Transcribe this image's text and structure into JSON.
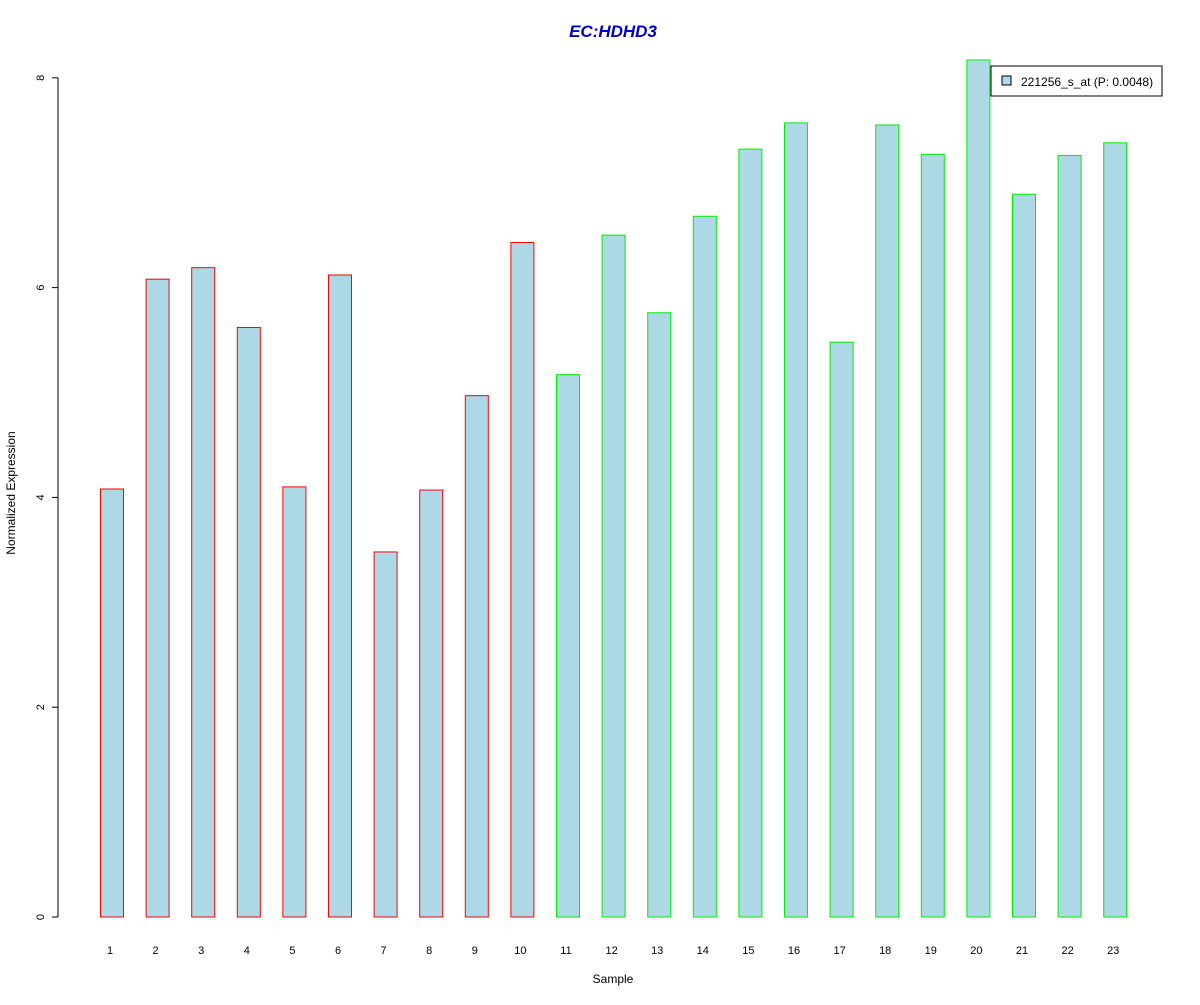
{
  "chart_data": {
    "type": "bar",
    "title": "EC:HDHD3",
    "xlabel": "Sample",
    "ylabel": "Normalized Expression",
    "categories": [
      "1",
      "2",
      "3",
      "4",
      "5",
      "6",
      "7",
      "8",
      "9",
      "10",
      "11",
      "12",
      "13",
      "14",
      "15",
      "16",
      "17",
      "18",
      "19",
      "20",
      "21",
      "22",
      "23"
    ],
    "series": [
      {
        "name": "221256_s_at (P: 0.0048)",
        "values": [
          4.08,
          6.08,
          6.19,
          5.62,
          4.1,
          6.12,
          3.48,
          4.07,
          4.97,
          6.43,
          5.17,
          6.5,
          5.76,
          6.68,
          7.32,
          7.57,
          5.48,
          7.55,
          7.27,
          8.17,
          6.89,
          7.26,
          7.38
        ]
      }
    ],
    "groups": [
      {
        "range": [
          1,
          10
        ],
        "border_color": "#ff0000"
      },
      {
        "range": [
          11,
          23
        ],
        "border_color": "#00ee00"
      }
    ],
    "yticks": [
      0,
      2,
      4,
      6,
      8
    ],
    "ylim": [
      0,
      8.2
    ],
    "fill_color": "#add8e6",
    "title_color": "#0000cc",
    "legend_position": "top-right",
    "grid": false
  }
}
